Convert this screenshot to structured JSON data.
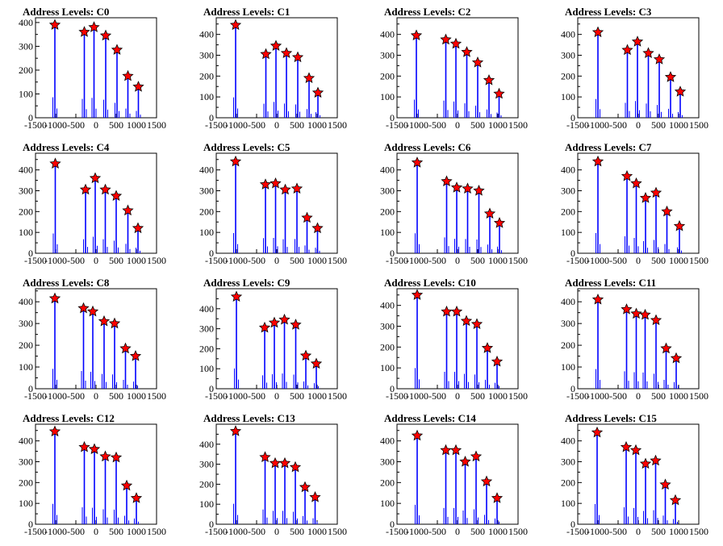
{
  "colors": {
    "spike": "#0000ff",
    "marker_fill": "#ff0000",
    "marker_stroke": "#000000",
    "frame": "#000000"
  },
  "chart_data": [
    {
      "type": "line",
      "title": "Address Levels: C0",
      "xlim": [
        -1500,
        1500
      ],
      "ylim": [
        0,
        420
      ],
      "xticks": [
        -1500,
        -1000,
        -500,
        0,
        500,
        1000,
        1500
      ],
      "xtick_labels": [
        "-1500",
        "-1000",
        "-500",
        "0",
        "500",
        "1000",
        "1500"
      ],
      "yticks": [
        0,
        100,
        200,
        300,
        400
      ],
      "ytick_labels": [
        "0",
        "100",
        "200",
        "300",
        "400"
      ],
      "grid": false,
      "peaks": {
        "x": [
          -1020,
          -290,
          -50,
          240,
          520,
          790,
          1050
        ],
        "y": [
          390,
          360,
          380,
          345,
          285,
          175,
          130
        ]
      }
    },
    {
      "type": "line",
      "title": "Address Levels: C1",
      "xlim": [
        -1500,
        1500
      ],
      "ylim": [
        0,
        480
      ],
      "xticks": [
        -1500,
        -1000,
        -500,
        0,
        500,
        1000,
        1500
      ],
      "xtick_labels": [
        "-1500",
        "-1000",
        "-500",
        "0",
        "500",
        "1000",
        "1500"
      ],
      "yticks": [
        0,
        100,
        200,
        300,
        400
      ],
      "ytick_labels": [
        "0",
        "100",
        "200",
        "300",
        "400"
      ],
      "grid": false,
      "peaks": {
        "x": [
          -1020,
          -270,
          -20,
          240,
          520,
          800,
          1020
        ],
        "y": [
          445,
          305,
          345,
          310,
          290,
          190,
          120
        ]
      }
    },
    {
      "type": "line",
      "title": "Address Levels: C2",
      "xlim": [
        -1500,
        1500
      ],
      "ylim": [
        0,
        480
      ],
      "xticks": [
        -1500,
        -1000,
        -500,
        0,
        500,
        1000,
        1500
      ],
      "xtick_labels": [
        "-1500",
        "-1000",
        "-500",
        "0",
        "500",
        "1000",
        "1500"
      ],
      "yticks": [
        0,
        100,
        200,
        300,
        400
      ],
      "ytick_labels": [
        "0",
        "100",
        "200",
        "300",
        "400"
      ],
      "grid": false,
      "peaks": {
        "x": [
          -1020,
          -290,
          -40,
          230,
          500,
          780,
          1030
        ],
        "y": [
          395,
          375,
          355,
          315,
          265,
          180,
          115
        ]
      }
    },
    {
      "type": "line",
      "title": "Address Levels: C3",
      "xlim": [
        -1500,
        1500
      ],
      "ylim": [
        0,
        480
      ],
      "xticks": [
        -1500,
        -1000,
        -500,
        0,
        500,
        1000,
        1500
      ],
      "xtick_labels": [
        "-1500",
        "-1000",
        "-500",
        "0",
        "500",
        "1000",
        "1500"
      ],
      "yticks": [
        0,
        100,
        200,
        300,
        400
      ],
      "ytick_labels": [
        "0",
        "100",
        "200",
        "300",
        "400"
      ],
      "grid": false,
      "peaks": {
        "x": [
          -1000,
          -270,
          -20,
          250,
          520,
          800,
          1040
        ],
        "y": [
          410,
          325,
          365,
          310,
          280,
          195,
          125
        ]
      }
    },
    {
      "type": "line",
      "title": "Address Levels: C4",
      "xlim": [
        -1500,
        1500
      ],
      "ylim": [
        0,
        480
      ],
      "xticks": [
        -1500,
        -1000,
        -500,
        0,
        500,
        1000,
        1500
      ],
      "xtick_labels": [
        "-1500",
        "-1000",
        "-500",
        "0",
        "500",
        "1000",
        "1500"
      ],
      "yticks": [
        0,
        100,
        200,
        300,
        400
      ],
      "ytick_labels": [
        "0",
        "100",
        "200",
        "300",
        "400"
      ],
      "grid": false,
      "peaks": {
        "x": [
          -1010,
          -260,
          -20,
          230,
          500,
          790,
          1040
        ],
        "y": [
          430,
          305,
          360,
          305,
          275,
          205,
          120
        ]
      }
    },
    {
      "type": "line",
      "title": "Address Levels: C5",
      "xlim": [
        -1500,
        1500
      ],
      "ylim": [
        0,
        480
      ],
      "xticks": [
        -1500,
        -1000,
        -500,
        0,
        500,
        1000,
        1500
      ],
      "xtick_labels": [
        "-1500",
        "-1000",
        "-500",
        "0",
        "500",
        "1000",
        "1500"
      ],
      "yticks": [
        0,
        100,
        200,
        300,
        400
      ],
      "ytick_labels": [
        "0",
        "100",
        "200",
        "300",
        "400"
      ],
      "grid": false,
      "peaks": {
        "x": [
          -1020,
          -280,
          -30,
          210,
          500,
          750,
          1010
        ],
        "y": [
          440,
          330,
          335,
          305,
          310,
          170,
          120
        ]
      }
    },
    {
      "type": "line",
      "title": "Address Levels: C6",
      "xlim": [
        -1500,
        1500
      ],
      "ylim": [
        0,
        480
      ],
      "xticks": [
        -1500,
        -1000,
        -500,
        0,
        500,
        1000,
        1500
      ],
      "xtick_labels": [
        "-1500",
        "-1000",
        "-500",
        "0",
        "500",
        "1000",
        "1500"
      ],
      "yticks": [
        0,
        100,
        200,
        300,
        400
      ],
      "ytick_labels": [
        "0",
        "100",
        "200",
        "300",
        "400"
      ],
      "grid": false,
      "peaks": {
        "x": [
          -1000,
          -270,
          -20,
          250,
          530,
          800,
          1040
        ],
        "y": [
          435,
          345,
          315,
          310,
          300,
          190,
          145
        ]
      }
    },
    {
      "type": "line",
      "title": "Address Levels: C7",
      "xlim": [
        -1500,
        1500
      ],
      "ylim": [
        0,
        480
      ],
      "xticks": [
        -1500,
        -1000,
        -500,
        0,
        500,
        1000,
        1500
      ],
      "xtick_labels": [
        "-1500",
        "-1000",
        "-500",
        "0",
        "500",
        "1000",
        "1500"
      ],
      "yticks": [
        0,
        100,
        200,
        300,
        400
      ],
      "ytick_labels": [
        "0",
        "100",
        "200",
        "300",
        "400"
      ],
      "grid": false,
      "peaks": {
        "x": [
          -1000,
          -280,
          -50,
          180,
          440,
          710,
          1020
        ],
        "y": [
          440,
          370,
          335,
          265,
          290,
          200,
          130
        ]
      }
    },
    {
      "type": "line",
      "title": "Address Levels: C8",
      "xlim": [
        -1500,
        1500
      ],
      "ylim": [
        0,
        460
      ],
      "xticks": [
        -1500,
        -1000,
        -500,
        0,
        500,
        1000,
        1500
      ],
      "xtick_labels": [
        "-1500",
        "-1000",
        "-500",
        "0",
        "500",
        "1000",
        "1500"
      ],
      "yticks": [
        0,
        100,
        200,
        300,
        400
      ],
      "ytick_labels": [
        "0",
        "100",
        "200",
        "300",
        "400"
      ],
      "grid": false,
      "peaks": {
        "x": [
          -1020,
          -310,
          -80,
          200,
          460,
          730,
          980
        ],
        "y": [
          415,
          370,
          355,
          310,
          300,
          185,
          150
        ]
      }
    },
    {
      "type": "line",
      "title": "Address Levels: C9",
      "xlim": [
        -1500,
        1500
      ],
      "ylim": [
        0,
        500
      ],
      "xticks": [
        -1500,
        -1000,
        -500,
        0,
        500,
        1000,
        1500
      ],
      "xtick_labels": [
        "-1500",
        "-1000",
        "-500",
        "0",
        "500",
        "1000",
        "1500"
      ],
      "yticks": [
        0,
        100,
        200,
        300,
        400
      ],
      "ytick_labels": [
        "0",
        "100",
        "200",
        "300",
        "400"
      ],
      "grid": false,
      "peaks": {
        "x": [
          -1000,
          -300,
          -60,
          190,
          470,
          720,
          980
        ],
        "y": [
          460,
          305,
          330,
          345,
          320,
          165,
          125
        ]
      }
    },
    {
      "type": "line",
      "title": "Address Levels: C10",
      "xlim": [
        -1500,
        1500
      ],
      "ylim": [
        0,
        480
      ],
      "xticks": [
        -1500,
        -1000,
        -500,
        0,
        500,
        1000,
        1500
      ],
      "xtick_labels": [
        "-1500",
        "-1000",
        "-500",
        "0",
        "500",
        "1000",
        "1500"
      ],
      "yticks": [
        0,
        100,
        200,
        300,
        400
      ],
      "ytick_labels": [
        "0",
        "100",
        "200",
        "300",
        "400"
      ],
      "grid": false,
      "peaks": {
        "x": [
          -1000,
          -270,
          -20,
          220,
          480,
          740,
          980
        ],
        "y": [
          450,
          370,
          370,
          325,
          310,
          195,
          130
        ]
      }
    },
    {
      "type": "line",
      "title": "Address Levels: C11",
      "xlim": [
        -1500,
        1500
      ],
      "ylim": [
        0,
        460
      ],
      "xticks": [
        -1500,
        -1000,
        -500,
        0,
        500,
        1000,
        1500
      ],
      "xtick_labels": [
        "-1500",
        "-1000",
        "-500",
        "0",
        "500",
        "1000",
        "1500"
      ],
      "yticks": [
        0,
        100,
        200,
        300,
        400
      ],
      "ytick_labels": [
        "0",
        "100",
        "200",
        "300",
        "400"
      ],
      "grid": false,
      "peaks": {
        "x": [
          -1000,
          -290,
          -50,
          170,
          440,
          690,
          940
        ],
        "y": [
          410,
          365,
          345,
          340,
          315,
          185,
          140
        ]
      }
    },
    {
      "type": "line",
      "title": "Address Levels: C12",
      "xlim": [
        -1500,
        1500
      ],
      "ylim": [
        0,
        480
      ],
      "xticks": [
        -1500,
        -1000,
        -500,
        0,
        500,
        1000,
        1500
      ],
      "xtick_labels": [
        "-1500",
        "-1000",
        "-500",
        "0",
        "500",
        "1000",
        "1500"
      ],
      "yticks": [
        0,
        100,
        200,
        300,
        400
      ],
      "ytick_labels": [
        "0",
        "100",
        "200",
        "300",
        "400"
      ],
      "grid": false,
      "peaks": {
        "x": [
          -1020,
          -290,
          -40,
          230,
          500,
          760,
          1000
        ],
        "y": [
          445,
          370,
          360,
          325,
          320,
          185,
          125
        ]
      }
    },
    {
      "type": "line",
      "title": "Address Levels: C13",
      "xlim": [
        -1500,
        1500
      ],
      "ylim": [
        0,
        500
      ],
      "xticks": [
        -1500,
        -1000,
        -500,
        0,
        500,
        1000,
        1500
      ],
      "xtick_labels": [
        "-1500",
        "-1000",
        "-500",
        "0",
        "500",
        "1000",
        "1500"
      ],
      "yticks": [
        0,
        100,
        200,
        300,
        400
      ],
      "ytick_labels": [
        "0",
        "100",
        "200",
        "300",
        "400"
      ],
      "grid": false,
      "peaks": {
        "x": [
          -1020,
          -290,
          -40,
          200,
          460,
          700,
          950
        ],
        "y": [
          465,
          335,
          305,
          305,
          285,
          185,
          135
        ]
      }
    },
    {
      "type": "line",
      "title": "Address Levels: C14",
      "xlim": [
        -1500,
        1500
      ],
      "ylim": [
        0,
        480
      ],
      "xticks": [
        -1500,
        -1000,
        -500,
        0,
        500,
        1000,
        1500
      ],
      "xtick_labels": [
        "-1500",
        "-1000",
        "-500",
        "0",
        "500",
        "1000",
        "1500"
      ],
      "yticks": [
        0,
        100,
        200,
        300,
        400
      ],
      "ytick_labels": [
        "0",
        "100",
        "200",
        "300",
        "400"
      ],
      "grid": false,
      "peaks": {
        "x": [
          -1000,
          -290,
          -40,
          190,
          460,
          720,
          980
        ],
        "y": [
          425,
          355,
          355,
          300,
          325,
          205,
          125
        ]
      }
    },
    {
      "type": "line",
      "title": "Address Levels: C15",
      "xlim": [
        -1500,
        1500
      ],
      "ylim": [
        0,
        480
      ],
      "xticks": [
        -1500,
        -1000,
        -500,
        0,
        500,
        1000,
        1500
      ],
      "xtick_labels": [
        "-1500",
        "-1000",
        "-500",
        "0",
        "500",
        "1000",
        "1500"
      ],
      "yticks": [
        0,
        100,
        200,
        300,
        400
      ],
      "ytick_labels": [
        "0",
        "100",
        "200",
        "300",
        "400"
      ],
      "grid": false,
      "peaks": {
        "x": [
          -1020,
          -300,
          -60,
          180,
          430,
          670,
          920
        ],
        "y": [
          440,
          370,
          355,
          290,
          305,
          190,
          115
        ]
      }
    }
  ]
}
